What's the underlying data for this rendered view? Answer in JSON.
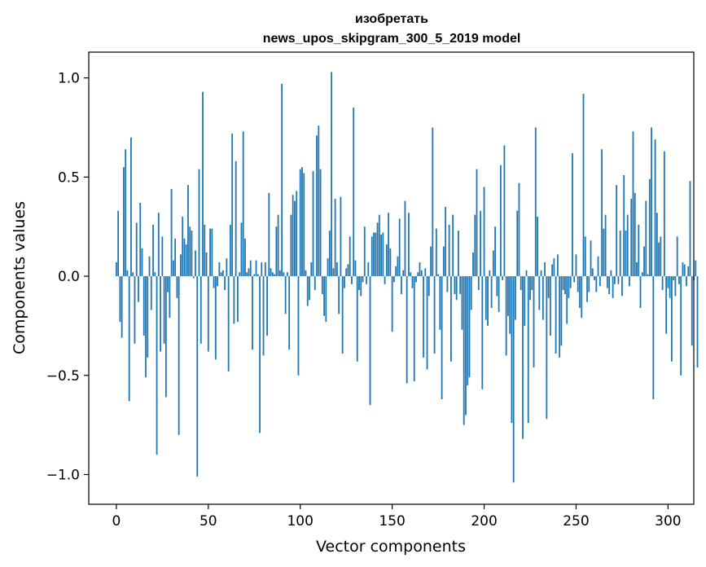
{
  "chart_data": {
    "type": "bar",
    "title_line1": "изобретать",
    "title_line2": "news_upos_skipgram_300_5_2019 model",
    "xlabel": "Vector components",
    "ylabel": "Components values",
    "xlim": [
      -15,
      314
    ],
    "ylim": [
      -1.15,
      1.13
    ],
    "xticks": [
      0,
      50,
      100,
      150,
      200,
      250,
      300
    ],
    "xtick_labels": [
      "0",
      "50",
      "100",
      "150",
      "200",
      "250",
      "300"
    ],
    "yticks": [
      -1.0,
      -0.5,
      0.0,
      0.5,
      1.0
    ],
    "ytick_labels": [
      "−1.0",
      "−0.5",
      "0.0",
      "0.5",
      "1.0"
    ],
    "grid": false,
    "bar_color": "#1f77b4",
    "values": [
      0.07,
      0.33,
      -0.23,
      -0.31,
      0.55,
      0.64,
      0.03,
      -0.63,
      0.7,
      0.02,
      -0.34,
      0.27,
      -0.13,
      0.37,
      0.14,
      -0.3,
      -0.51,
      -0.41,
      0.1,
      -0.17,
      0.26,
      0.02,
      -0.9,
      0.32,
      -0.38,
      0.2,
      -0.34,
      -0.61,
      -0.08,
      -0.21,
      0.44,
      0.08,
      0.19,
      -0.11,
      -0.8,
      0.11,
      0.3,
      0.19,
      0.16,
      0.46,
      0.25,
      0.23,
      -0.01,
      0.13,
      -1.01,
      0.54,
      -0.34,
      0.93,
      0.26,
      0.12,
      -0.38,
      0.24,
      0.24,
      -0.06,
      -0.42,
      -0.05,
      0.07,
      0.02,
      0.03,
      -0.07,
      0.09,
      -0.48,
      0.26,
      0.72,
      -0.24,
      0.58,
      -0.23,
      0.02,
      0.27,
      0.73,
      0.19,
      0.02,
      0.04,
      0.08,
      -0.37,
      0.01,
      0.08,
      0.01,
      -0.79,
      0.07,
      -0.4,
      0.07,
      -0.3,
      0.42,
      0.04,
      0.02,
      0.01,
      0.25,
      0.31,
      0.03,
      0.97,
      0.02,
      -0.19,
      0.02,
      -0.37,
      0.31,
      0.41,
      0.38,
      0.43,
      -0.5,
      0.54,
      0.55,
      0.52,
      0.03,
      -0.15,
      -0.12,
      0.07,
      0.53,
      -0.07,
      0.71,
      0.76,
      0.54,
      -0.09,
      -0.2,
      -0.23,
      0.09,
      0.23,
      1.03,
      0.04,
      0.39,
      0.07,
      -0.19,
      0.4,
      -0.39,
      -0.06,
      0.04,
      0.06,
      0.2,
      -0.04,
      0.85,
      0.08,
      -0.43,
      -0.07,
      -0.1,
      -0.03,
      0.25,
      -0.04,
      0.07,
      -0.65,
      0.2,
      0.22,
      0.22,
      0.27,
      0.31,
      0.21,
      0.22,
      -0.04,
      0.16,
      0.32,
      0.14,
      -0.28,
      -0.03,
      0.05,
      0.1,
      0.29,
      -0.09,
      0.03,
      0.38,
      -0.54,
      0.32,
      0.02,
      -0.06,
      -0.53,
      -0.03,
      0.02,
      0.07,
      0.03,
      -0.41,
      0.04,
      -0.47,
      -0.1,
      0.15,
      0.75,
      -0.39,
      0.24,
      0.01,
      -0.27,
      -0.62,
      0.15,
      0.35,
      -0.08,
      0.26,
      -0.43,
      0.31,
      -0.09,
      -0.12,
      0.23,
      -0.09,
      -0.27,
      -0.75,
      -0.7,
      -0.55,
      -0.51,
      -0.17,
      0.12,
      0.31,
      0.54,
      -0.07,
      0.33,
      -0.57,
      0.45,
      -0.22,
      -0.25,
      0.03,
      -0.16,
      0.13,
      0.25,
      -0.1,
      -0.18,
      0.56,
      -0.02,
      0.66,
      -0.4,
      -0.2,
      -0.29,
      -0.74,
      -1.04,
      -0.22,
      0.33,
      0.47,
      -0.07,
      -0.82,
      -0.25,
      0.03,
      -0.74,
      -0.12,
      -0.07,
      -0.46,
      0.75,
      0.3,
      -0.17,
      0.03,
      -0.22,
      0.07,
      -0.72,
      -0.11,
      -0.3,
      0.06,
      0.09,
      -0.39,
      0.11,
      -0.41,
      -0.35,
      -0.07,
      -0.09,
      -0.24,
      -0.11,
      -0.06,
      0.62,
      -0.03,
      0.11,
      -0.08,
      -0.16,
      -0.21,
      0.92,
      0.2,
      -0.13,
      -0.08,
      0.18,
      0.04,
      -0.02,
      -0.08,
      0.1,
      -0.05,
      0.64,
      0.24,
      0.31,
      -0.06,
      -0.09,
      0.03,
      -0.11,
      -0.04,
      0.46,
      -0.04,
      0.23,
      -0.1,
      0.51,
      0.23,
      0.31,
      -0.05,
      0.39,
      0.73,
      0.42,
      0.07,
      0.26,
      -0.16,
      0.02,
      0.15,
      0.38,
      0.01,
      0.49,
      0.75,
      -0.62,
      0.69,
      0.32,
      0.17,
      0.2,
      -0.07,
      0.63,
      -0.29,
      -0.06,
      -0.11,
      -0.43,
      -0.02,
      -0.1,
      0.2,
      -0.04,
      -0.5,
      0.07,
      0.06,
      -0.05,
      0.05,
      0.48,
      -0.35,
      -0.02,
      0.08,
      -0.46
    ]
  }
}
